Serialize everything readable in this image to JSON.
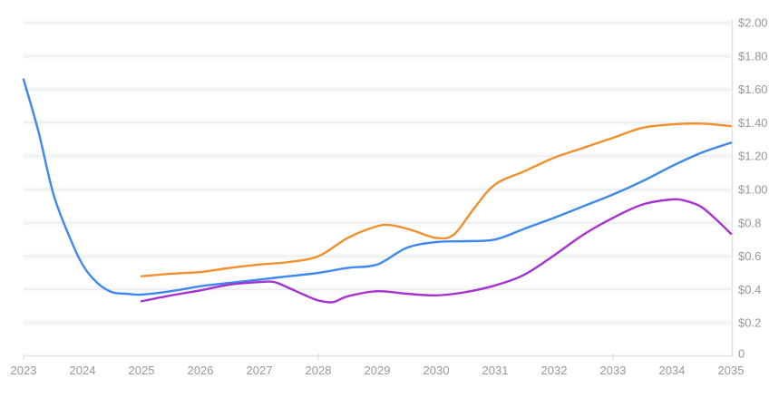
{
  "chart_data": {
    "type": "line",
    "title": "",
    "legend": "none",
    "grid": "horizontal",
    "x_axis": {
      "labels": [
        "2023",
        "2024",
        "2025",
        "2026",
        "2027",
        "2028",
        "2029",
        "2030",
        "2031",
        "2032",
        "2033",
        "2034",
        "2035"
      ],
      "range": [
        2023,
        2035
      ],
      "tick_mark_years": [
        2023,
        2028,
        2033
      ]
    },
    "y_axis": {
      "position": "right",
      "range": [
        0,
        2
      ],
      "ticks": [
        {
          "label": "$2.00",
          "value": 2.0
        },
        {
          "label": "$1.80",
          "value": 1.8
        },
        {
          "label": "$1.60",
          "value": 1.6
        },
        {
          "label": "$1.40",
          "value": 1.4
        },
        {
          "label": "$1.20",
          "value": 1.2
        },
        {
          "label": "$1.00",
          "value": 1.0
        },
        {
          "label": "$0.8",
          "value": 0.8
        },
        {
          "label": "$0.6",
          "value": 0.6
        },
        {
          "label": "$0.4",
          "value": 0.4
        },
        {
          "label": "$0.2",
          "value": 0.2
        },
        {
          "label": "0",
          "value": 0.0
        }
      ]
    },
    "colors": {
      "grid": "#e9ebed",
      "grid_soft_band": "rgba(160,165,175,0.07)",
      "axis": "#e0e2e4",
      "tick": "#d7d9db",
      "label_text": "#95989c"
    },
    "series": [
      {
        "name": "blue-line",
        "color": "#3c88ef",
        "points": [
          [
            2023,
            1.66
          ],
          [
            2023.25,
            1.35
          ],
          [
            2023.5,
            0.98
          ],
          [
            2023.75,
            0.74
          ],
          [
            2024,
            0.55
          ],
          [
            2024.25,
            0.44
          ],
          [
            2024.5,
            0.385
          ],
          [
            2024.75,
            0.375
          ],
          [
            2025,
            0.37
          ],
          [
            2025.5,
            0.39
          ],
          [
            2026,
            0.42
          ],
          [
            2026.5,
            0.44
          ],
          [
            2027,
            0.46
          ],
          [
            2027.5,
            0.48
          ],
          [
            2028,
            0.5
          ],
          [
            2028.5,
            0.53
          ],
          [
            2029,
            0.55
          ],
          [
            2029.5,
            0.65
          ],
          [
            2030,
            0.685
          ],
          [
            2030.5,
            0.69
          ],
          [
            2031,
            0.7
          ],
          [
            2031.5,
            0.765
          ],
          [
            2032,
            0.83
          ],
          [
            2032.5,
            0.9
          ],
          [
            2033,
            0.97
          ],
          [
            2033.5,
            1.05
          ],
          [
            2034,
            1.14
          ],
          [
            2034.5,
            1.22
          ],
          [
            2035,
            1.28
          ]
        ]
      },
      {
        "name": "orange-line",
        "color": "#f0902d",
        "points": [
          [
            2025,
            0.48
          ],
          [
            2025.5,
            0.495
          ],
          [
            2026,
            0.505
          ],
          [
            2026.5,
            0.53
          ],
          [
            2027,
            0.55
          ],
          [
            2027.5,
            0.565
          ],
          [
            2028,
            0.6
          ],
          [
            2028.5,
            0.71
          ],
          [
            2029,
            0.78
          ],
          [
            2029.25,
            0.785
          ],
          [
            2029.6,
            0.755
          ],
          [
            2030,
            0.71
          ],
          [
            2030.3,
            0.73
          ],
          [
            2030.65,
            0.89
          ],
          [
            2031,
            1.03
          ],
          [
            2031.5,
            1.11
          ],
          [
            2032,
            1.19
          ],
          [
            2032.5,
            1.25
          ],
          [
            2033,
            1.31
          ],
          [
            2033.5,
            1.37
          ],
          [
            2034,
            1.39
          ],
          [
            2034.5,
            1.395
          ],
          [
            2035,
            1.38
          ]
        ]
      },
      {
        "name": "purple-line",
        "color": "#a632d1",
        "points": [
          [
            2025,
            0.33
          ],
          [
            2025.5,
            0.365
          ],
          [
            2026,
            0.395
          ],
          [
            2026.5,
            0.43
          ],
          [
            2027,
            0.445
          ],
          [
            2027.25,
            0.445
          ],
          [
            2027.5,
            0.41
          ],
          [
            2027.75,
            0.37
          ],
          [
            2028,
            0.335
          ],
          [
            2028.25,
            0.325
          ],
          [
            2028.5,
            0.36
          ],
          [
            2029,
            0.39
          ],
          [
            2029.5,
            0.375
          ],
          [
            2030,
            0.365
          ],
          [
            2030.5,
            0.385
          ],
          [
            2031,
            0.425
          ],
          [
            2031.5,
            0.49
          ],
          [
            2032,
            0.605
          ],
          [
            2032.5,
            0.73
          ],
          [
            2033,
            0.83
          ],
          [
            2033.5,
            0.91
          ],
          [
            2034,
            0.94
          ],
          [
            2034.25,
            0.93
          ],
          [
            2034.5,
            0.895
          ],
          [
            2034.75,
            0.82
          ],
          [
            2035,
            0.735
          ]
        ]
      }
    ]
  }
}
